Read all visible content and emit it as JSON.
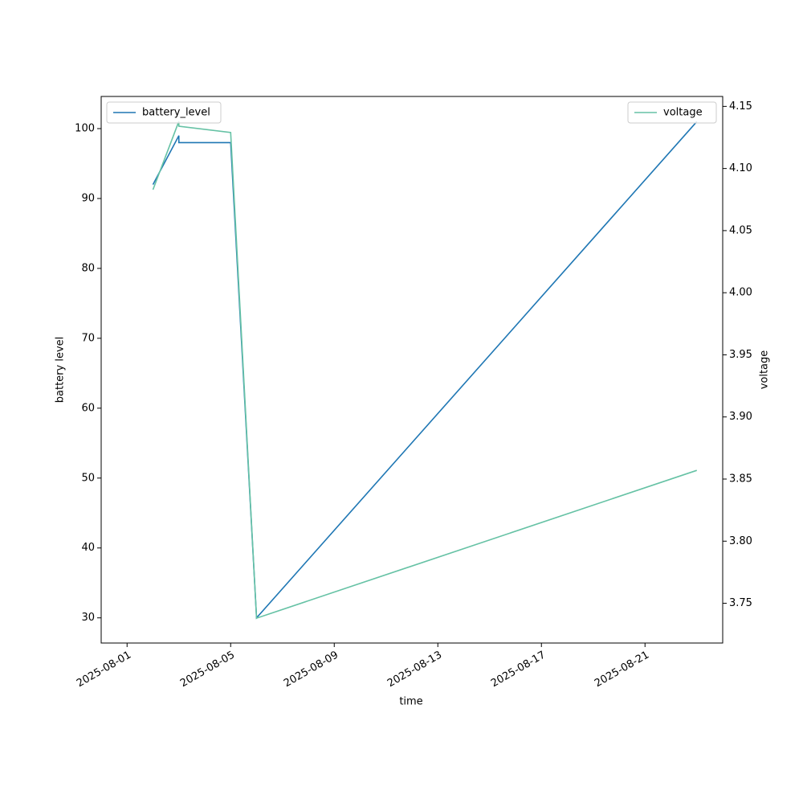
{
  "chart_data": {
    "type": "line",
    "x_label": "time",
    "y_label": "battery level",
    "y2_label": "voltage",
    "x": [
      "2025-08-02",
      "2025-08-03",
      "2025-08-03",
      "2025-08-05",
      "2025-08-06",
      "2025-08-23"
    ],
    "series": [
      {
        "name": "battery_level",
        "color": "#1f77b4",
        "values": [
          92,
          99,
          98,
          98,
          30,
          101
        ]
      },
      {
        "name": "voltage",
        "color": "#66c2a5",
        "axis": "y2",
        "values": [
          4.083,
          4.138,
          4.134,
          4.129,
          3.738,
          3.857
        ]
      }
    ],
    "xlim": [
      "2025-07-31",
      "2025-08-24"
    ],
    "xticks": [
      "2025-08-01",
      "2025-08-05",
      "2025-08-09",
      "2025-08-13",
      "2025-08-17",
      "2025-08-21"
    ],
    "ylim": [
      26.4,
      104.6
    ],
    "yticks": [
      30,
      40,
      50,
      60,
      70,
      80,
      90,
      100
    ],
    "y2lim": [
      3.718,
      4.158
    ],
    "y2ticks": [
      {
        "value": 3.75,
        "label": "3.75"
      },
      {
        "value": 3.8,
        "label": "3.80"
      },
      {
        "value": 3.85,
        "label": "3.85"
      },
      {
        "value": 3.9,
        "label": "3.90"
      },
      {
        "value": 3.95,
        "label": "3.95"
      },
      {
        "value": 4.0,
        "label": "4.00"
      },
      {
        "value": 4.05,
        "label": "4.05"
      },
      {
        "value": 4.1,
        "label": "4.10"
      },
      {
        "value": 4.15,
        "label": "4.15"
      }
    ],
    "legend": [
      "upper left",
      "upper right"
    ]
  }
}
